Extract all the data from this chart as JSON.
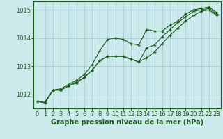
{
  "background_color": "#cce9ec",
  "plot_bg_color": "#cce9ec",
  "grid_color": "#9ecdd4",
  "line_color": "#1a5c1a",
  "xlabel": "Graphe pression niveau de la mer (hPa)",
  "xlabel_fontsize": 7,
  "tick_fontsize": 6,
  "ylim": [
    1011.5,
    1015.3
  ],
  "xlim": [
    -0.5,
    23.5
  ],
  "yticks": [
    1012,
    1013,
    1014,
    1015
  ],
  "xticks": [
    0,
    1,
    2,
    3,
    4,
    5,
    6,
    7,
    8,
    9,
    10,
    11,
    12,
    13,
    14,
    15,
    16,
    17,
    18,
    19,
    20,
    21,
    22,
    23
  ],
  "series": [
    [
      1011.75,
      1011.75,
      1012.15,
      1012.2,
      1012.35,
      1012.5,
      1012.7,
      1013.05,
      1013.55,
      1013.95,
      1014.0,
      1013.95,
      1013.8,
      1013.75,
      1014.3,
      1014.25,
      1014.25,
      1014.45,
      1014.6,
      1014.85,
      1015.0,
      1015.05,
      1015.1,
      1014.9
    ],
    [
      1011.75,
      1011.7,
      1012.15,
      1012.15,
      1012.3,
      1012.4,
      1012.6,
      1012.85,
      1013.2,
      1013.35,
      1013.35,
      1013.35,
      1013.25,
      1013.15,
      1013.65,
      1013.75,
      1014.05,
      1014.3,
      1014.55,
      1014.75,
      1014.95,
      1015.0,
      1015.05,
      1014.85
    ],
    [
      1011.75,
      1011.7,
      1012.15,
      1012.15,
      1012.3,
      1012.45,
      1012.6,
      1012.85,
      1013.2,
      1013.35,
      1013.35,
      1013.35,
      1013.25,
      1013.15,
      1013.3,
      1013.5,
      1013.8,
      1014.1,
      1014.35,
      1014.6,
      1014.8,
      1014.95,
      1015.0,
      1014.8
    ]
  ]
}
